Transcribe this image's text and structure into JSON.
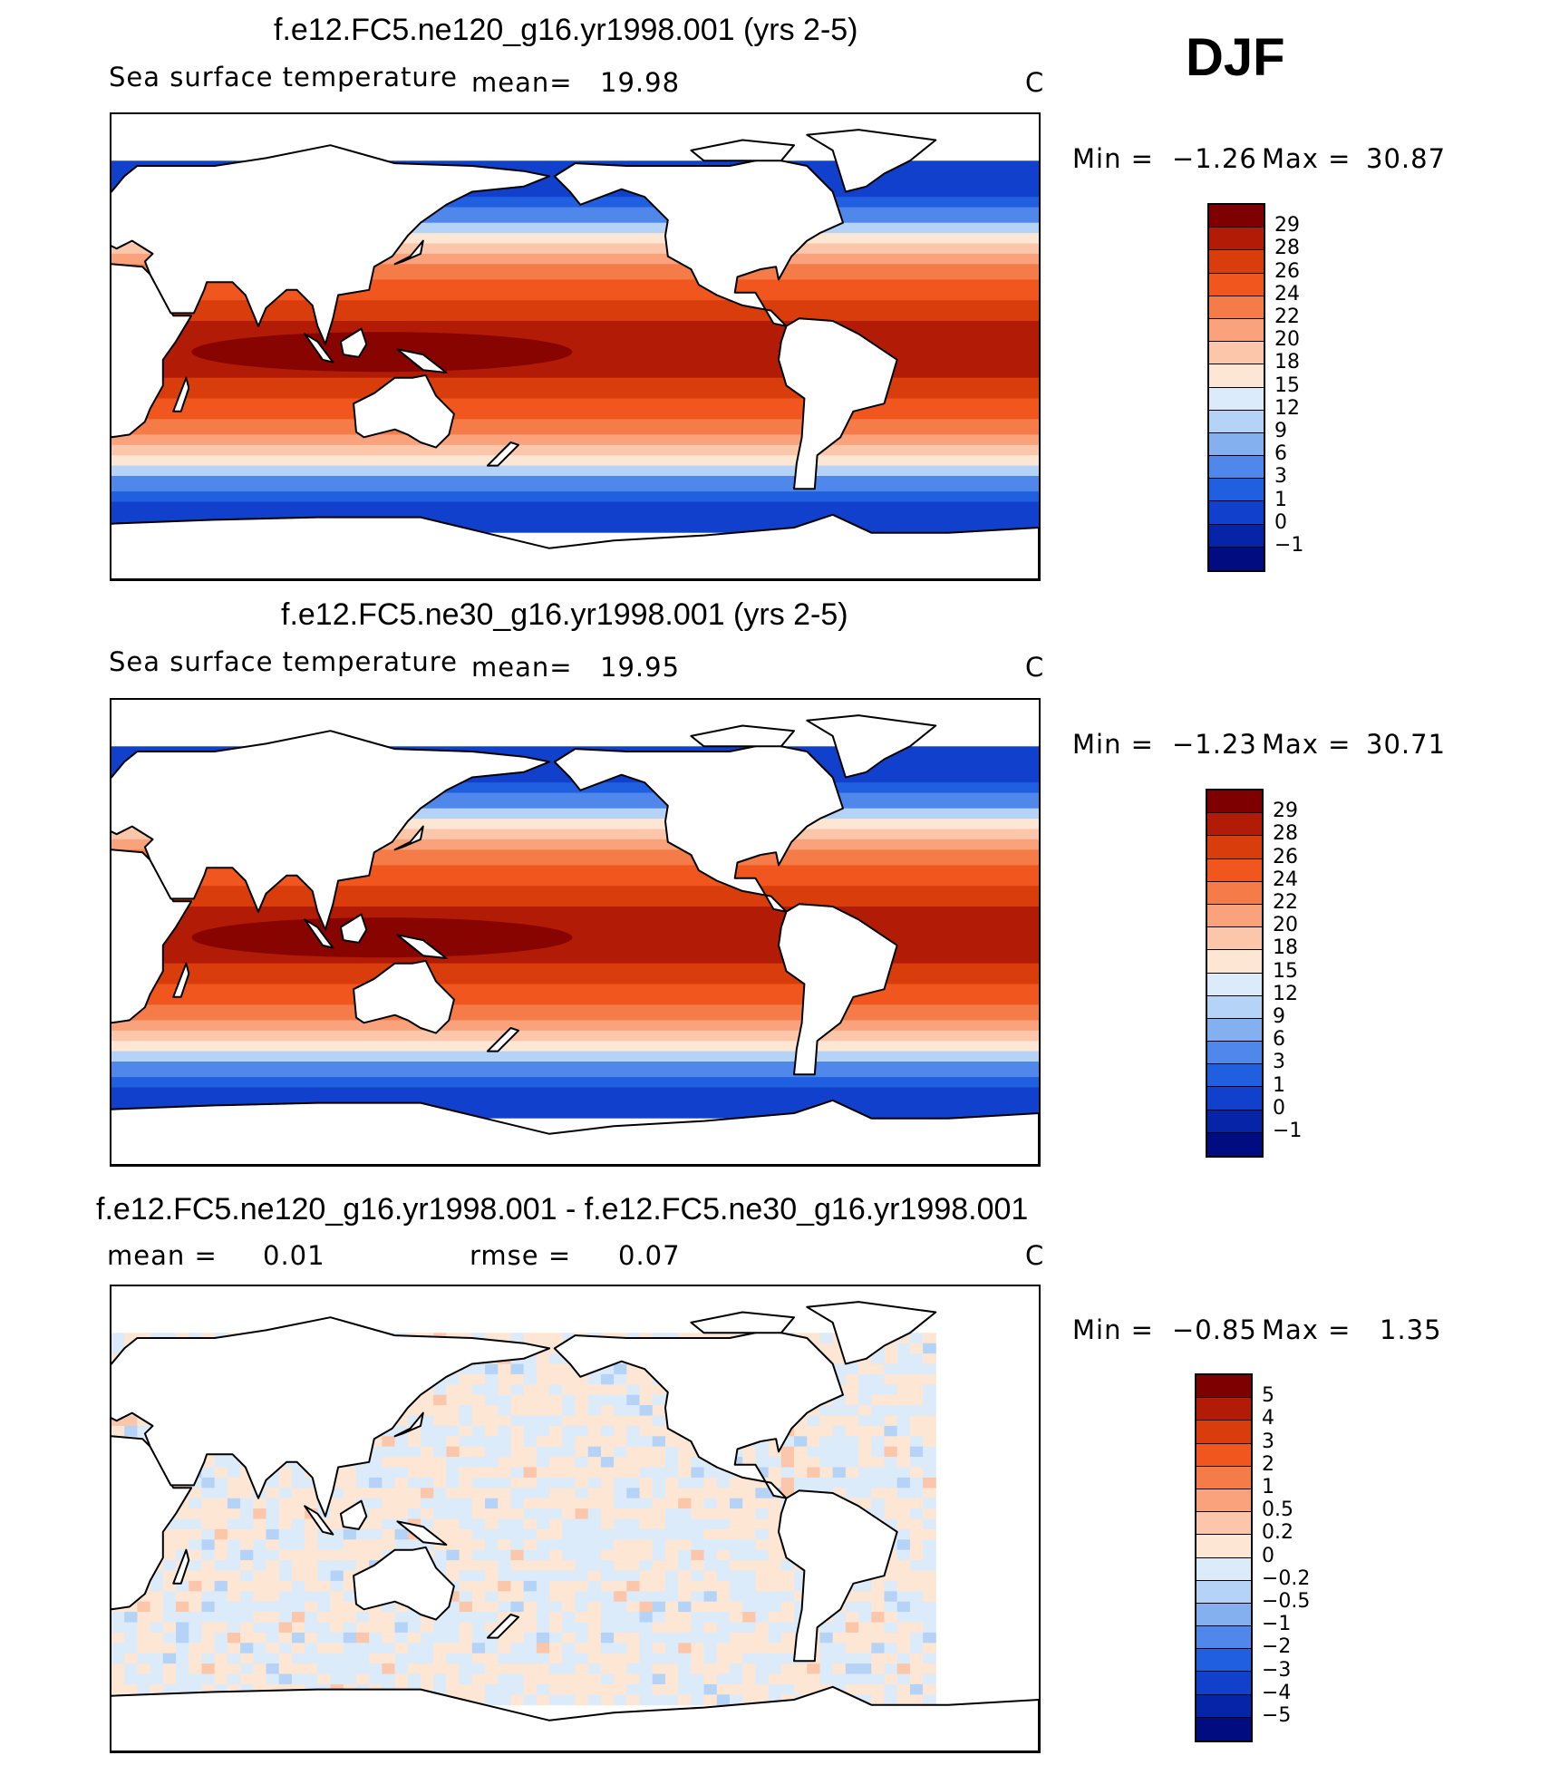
{
  "season": "DJF",
  "colors": {
    "temp_levels": [
      "#7f0000",
      "#b21c06",
      "#d93d0b",
      "#f0561e",
      "#f57c48",
      "#f9a27c",
      "#fcc6aa",
      "#fde6d3",
      "#dcebfa",
      "#b4d3f7",
      "#85b0f0",
      "#4f87eb",
      "#2060e0",
      "#1040cc",
      "#0524a8",
      "#000c80"
    ],
    "diff_levels": [
      "#7f0000",
      "#b21c06",
      "#d93d0b",
      "#f0561e",
      "#f57c48",
      "#f9a27c",
      "#fcc6aa",
      "#fde6d3",
      "#dcebfa",
      "#b4d3f7",
      "#85b0f0",
      "#4f87eb",
      "#2060e0",
      "#1040cc",
      "#0524a8",
      "#000c80"
    ]
  },
  "panels": [
    {
      "id": "ne120",
      "title": "f.e12.FC5.ne120_g16.yr1998.001 (yrs 2-5)",
      "left_label": "Sea surface temperature",
      "mean_label": "mean=",
      "mean_value": "19.98",
      "units": "C",
      "min_label": "Min =",
      "min_value": "−1.26",
      "max_label": "Max =",
      "max_value": "30.87",
      "colorbar_labels": [
        "29",
        "28",
        "26",
        "24",
        "22",
        "20",
        "18",
        "15",
        "12",
        "9",
        "6",
        "3",
        "1",
        "0",
        "−1"
      ]
    },
    {
      "id": "ne30",
      "title": "f.e12.FC5.ne30_g16.yr1998.001 (yrs 2-5)",
      "left_label": "Sea surface temperature",
      "mean_label": "mean=",
      "mean_value": "19.95",
      "units": "C",
      "min_label": "Min =",
      "min_value": "−1.23",
      "max_label": "Max =",
      "max_value": "30.71",
      "colorbar_labels": [
        "29",
        "28",
        "26",
        "24",
        "22",
        "20",
        "18",
        "15",
        "12",
        "9",
        "6",
        "3",
        "1",
        "0",
        "−1"
      ]
    },
    {
      "id": "diff",
      "title": "f.e12.FC5.ne120_g16.yr1998.001 - f.e12.FC5.ne30_g16.yr1998.001",
      "left_label": "mean =",
      "mean_value": "0.01",
      "rmse_label": "rmse =",
      "rmse_value": "0.07",
      "units": "C",
      "min_label": "Min =",
      "min_value": "−0.85",
      "max_label": "Max =",
      "max_value": "1.35",
      "colorbar_labels": [
        "5",
        "4",
        "3",
        "2",
        "1",
        "0.5",
        "0.2",
        "0",
        "−0.2",
        "−0.5",
        "−1",
        "−2",
        "−3",
        "−4",
        "−5"
      ]
    }
  ]
}
